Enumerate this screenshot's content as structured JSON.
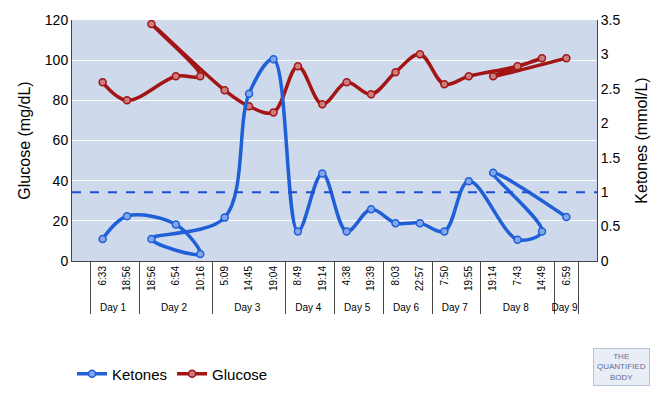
{
  "chart_data": {
    "type": "line",
    "y_label": "Glucose (mg/dL)",
    "y2_label": "Ketones (mmol/L)",
    "categories": [
      "6:33",
      "18:56",
      "6:54",
      "10:16",
      "18:56",
      "5:09",
      "14:45",
      "19:04",
      "8:49",
      "19:14",
      "4:38",
      "19:39",
      "8:03",
      "22:57",
      "7:50",
      "19:55",
      "7:43",
      "14:49",
      "19:14",
      "6:59"
    ],
    "days": [
      "Day 1",
      "Day 1",
      "Day 2",
      "Day 2",
      "Day 2",
      "Day 3",
      "Day 3",
      "Day 3",
      "Day 4",
      "Day 4",
      "Day 5",
      "Day 5",
      "Day 6",
      "Day 6",
      "Day 7",
      "Day 7",
      "Day 8",
      "Day 8",
      "Day 8",
      "Day 9"
    ],
    "series": [
      {
        "name": "Ketones",
        "color": "#1f5fd8",
        "axis": "y2",
        "marker": "circle",
        "values": [
          0.32,
          0.65,
          0.53,
          0.1,
          0.32,
          0.63,
          2.43,
          2.93,
          0.43,
          1.27,
          0.43,
          0.75,
          0.55,
          0.55,
          0.43,
          1.16,
          0.31,
          0.43,
          1.28,
          0.64
        ]
      },
      {
        "name": "Glucose",
        "color": "#a31515",
        "marker": "circle",
        "values": [
          89,
          80,
          92,
          92,
          118,
          85,
          77,
          74,
          97,
          78,
          89,
          83,
          94,
          103,
          88,
          92,
          97,
          101,
          92,
          101
        ]
      }
    ],
    "ylim": [
      0,
      120
    ],
    "yticks": [
      0,
      20,
      40,
      60,
      80,
      100,
      120
    ],
    "y2lim": [
      0,
      3.5
    ],
    "y2ticks": [
      0,
      0.5,
      1,
      1.5,
      2,
      2.5,
      3,
      3.5
    ],
    "reference_line": {
      "axis": "y2",
      "value": 1,
      "color": "#1f4fd0",
      "line_style": "dash"
    },
    "grid": true,
    "legend": "bottom left",
    "watermark": "THE QUANTIFIED BODY"
  }
}
